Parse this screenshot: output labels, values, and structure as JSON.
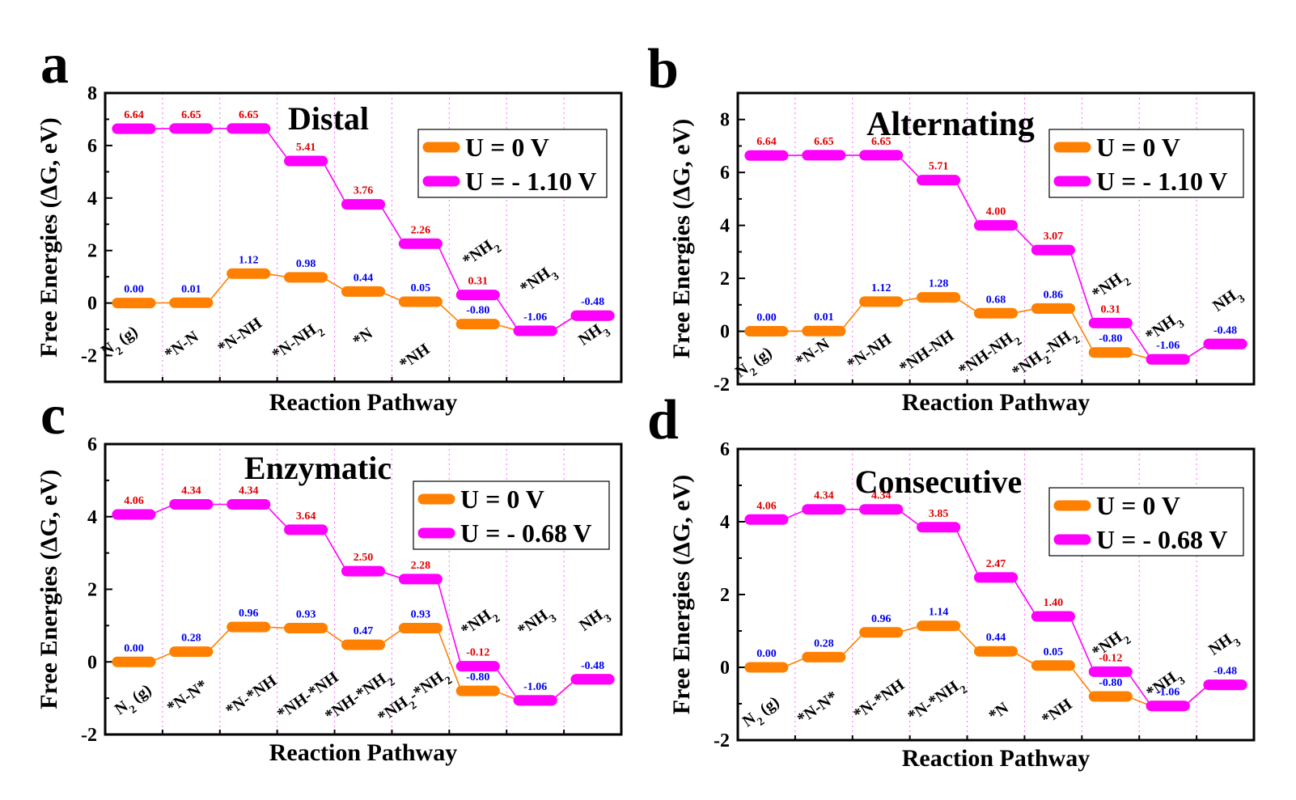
{
  "colors": {
    "u0": "#ff8000",
    "uneg": "#ff00ff",
    "label_u0": "#0000ee",
    "label_uneg": "#e00000"
  },
  "chart_data": [
    {
      "panel": "a",
      "title": "Distal",
      "type": "line",
      "xlabel": "Reaction Pathway",
      "ylabel": "Free Energies (ΔG, eV)",
      "ylim": [
        -3,
        8
      ],
      "yticks": [
        "-2",
        "0",
        "2",
        "4",
        "6",
        "8"
      ],
      "grid": "vertical dotted",
      "legend_position": "top-right",
      "categories": [
        "N2 (g)",
        "*N-N",
        "*N-NH",
        "*N-NH2",
        "*N",
        "*NH",
        "*NH2",
        "*NH3",
        "NH3"
      ],
      "series": [
        {
          "name": "U = 0 V",
          "values": [
            0.0,
            0.01,
            1.12,
            0.98,
            0.44,
            0.05,
            -0.8,
            -1.06,
            -0.48
          ],
          "labels": [
            "0.00",
            "0.01",
            "1.12",
            "0.98",
            "0.44",
            "0.05",
            "-0.80",
            "-1.06",
            "-0.48"
          ]
        },
        {
          "name": "U = - 1.10 V",
          "values": [
            6.64,
            6.65,
            6.65,
            5.41,
            3.76,
            2.26,
            0.31,
            -1.06,
            -0.48
          ],
          "labels": [
            "6.64",
            "6.65",
            "6.65",
            "5.41",
            "3.76",
            "2.26",
            "0.31",
            "",
            ""
          ]
        }
      ]
    },
    {
      "panel": "b",
      "title": "Alternating",
      "type": "line",
      "xlabel": "Reaction Pathway",
      "ylabel": "Free Energies (ΔG, eV)",
      "ylim": [
        -2,
        9
      ],
      "yticks": [
        "-2",
        "0",
        "2",
        "4",
        "6",
        "8"
      ],
      "grid": "vertical dotted",
      "legend_position": "top-right",
      "categories": [
        "N2 (g)",
        "*N-N",
        "*N-NH",
        "*NH-NH",
        "*NH-NH2",
        "*NH2-NH2",
        "*NH2",
        "*NH3",
        "NH3"
      ],
      "series": [
        {
          "name": "U = 0 V",
          "values": [
            0.0,
            0.01,
            1.12,
            1.28,
            0.68,
            0.86,
            -0.8,
            -1.06,
            -0.48
          ],
          "labels": [
            "0.00",
            "0.01",
            "1.12",
            "1.28",
            "0.68",
            "0.86",
            "-0.80",
            "-1.06",
            "-0.48"
          ]
        },
        {
          "name": "U = - 1.10 V",
          "values": [
            6.64,
            6.65,
            6.65,
            5.71,
            4.0,
            3.07,
            0.31,
            -1.06,
            -0.48
          ],
          "labels": [
            "6.64",
            "6.65",
            "6.65",
            "5.71",
            "4.00",
            "3.07",
            "0.31",
            "",
            ""
          ]
        }
      ]
    },
    {
      "panel": "c",
      "title": "Enzymatic",
      "type": "line",
      "xlabel": "Reaction Pathway",
      "ylabel": "Free Energies (ΔG, eV)",
      "ylim": [
        -2,
        6
      ],
      "yticks": [
        "-2",
        "0",
        "2",
        "4",
        "6"
      ],
      "grid": "vertical dotted",
      "legend_position": "top-right",
      "categories": [
        "N2 (g)",
        "*N-N*",
        "*N-*NH",
        "*NH-*NH",
        "*NH-*NH2",
        "*NH2-*NH2",
        "*NH2",
        "*NH3",
        "NH3"
      ],
      "series": [
        {
          "name": "U = 0 V",
          "values": [
            0.0,
            0.28,
            0.96,
            0.93,
            0.47,
            0.93,
            -0.8,
            -1.06,
            -0.48
          ],
          "labels": [
            "0.00",
            "0.28",
            "0.96",
            "0.93",
            "0.47",
            "0.93",
            "-0.80",
            "-1.06",
            "-0.48"
          ]
        },
        {
          "name": "U = - 0.68 V",
          "values": [
            4.06,
            4.34,
            4.34,
            3.64,
            2.5,
            2.28,
            -0.12,
            -1.06,
            -0.48
          ],
          "labels": [
            "4.06",
            "4.34",
            "4.34",
            "3.64",
            "2.50",
            "2.28",
            "-0.12",
            "",
            ""
          ]
        }
      ]
    },
    {
      "panel": "d",
      "title": "Consecutive",
      "type": "line",
      "xlabel": "Reaction Pathway",
      "ylabel": "Free Energies (ΔG, eV)",
      "ylim": [
        -2,
        6
      ],
      "yticks": [
        "-2",
        "0",
        "2",
        "4",
        "6"
      ],
      "grid": "vertical dotted",
      "legend_position": "top-right",
      "categories": [
        "N2 (g)",
        "*N-N*",
        "*N-*NH",
        "*N-*NH2",
        "*N",
        "*NH",
        "*NH2",
        "*NH3",
        "NH3"
      ],
      "series": [
        {
          "name": "U = 0 V",
          "values": [
            0.0,
            0.28,
            0.96,
            1.14,
            0.44,
            0.05,
            -0.8,
            -1.06,
            -0.48
          ],
          "labels": [
            "0.00",
            "0.28",
            "0.96",
            "1.14",
            "0.44",
            "0.05",
            "-0.80",
            "-1.06",
            "-0.48"
          ]
        },
        {
          "name": "U = - 0.68 V",
          "values": [
            4.06,
            4.34,
            4.34,
            3.85,
            2.47,
            1.4,
            -0.12,
            -1.06,
            -0.48
          ],
          "labels": [
            "4.06",
            "4.34",
            "4.34",
            "3.85",
            "2.47",
            "1.40",
            "-0.12",
            "",
            ""
          ]
        }
      ]
    }
  ]
}
